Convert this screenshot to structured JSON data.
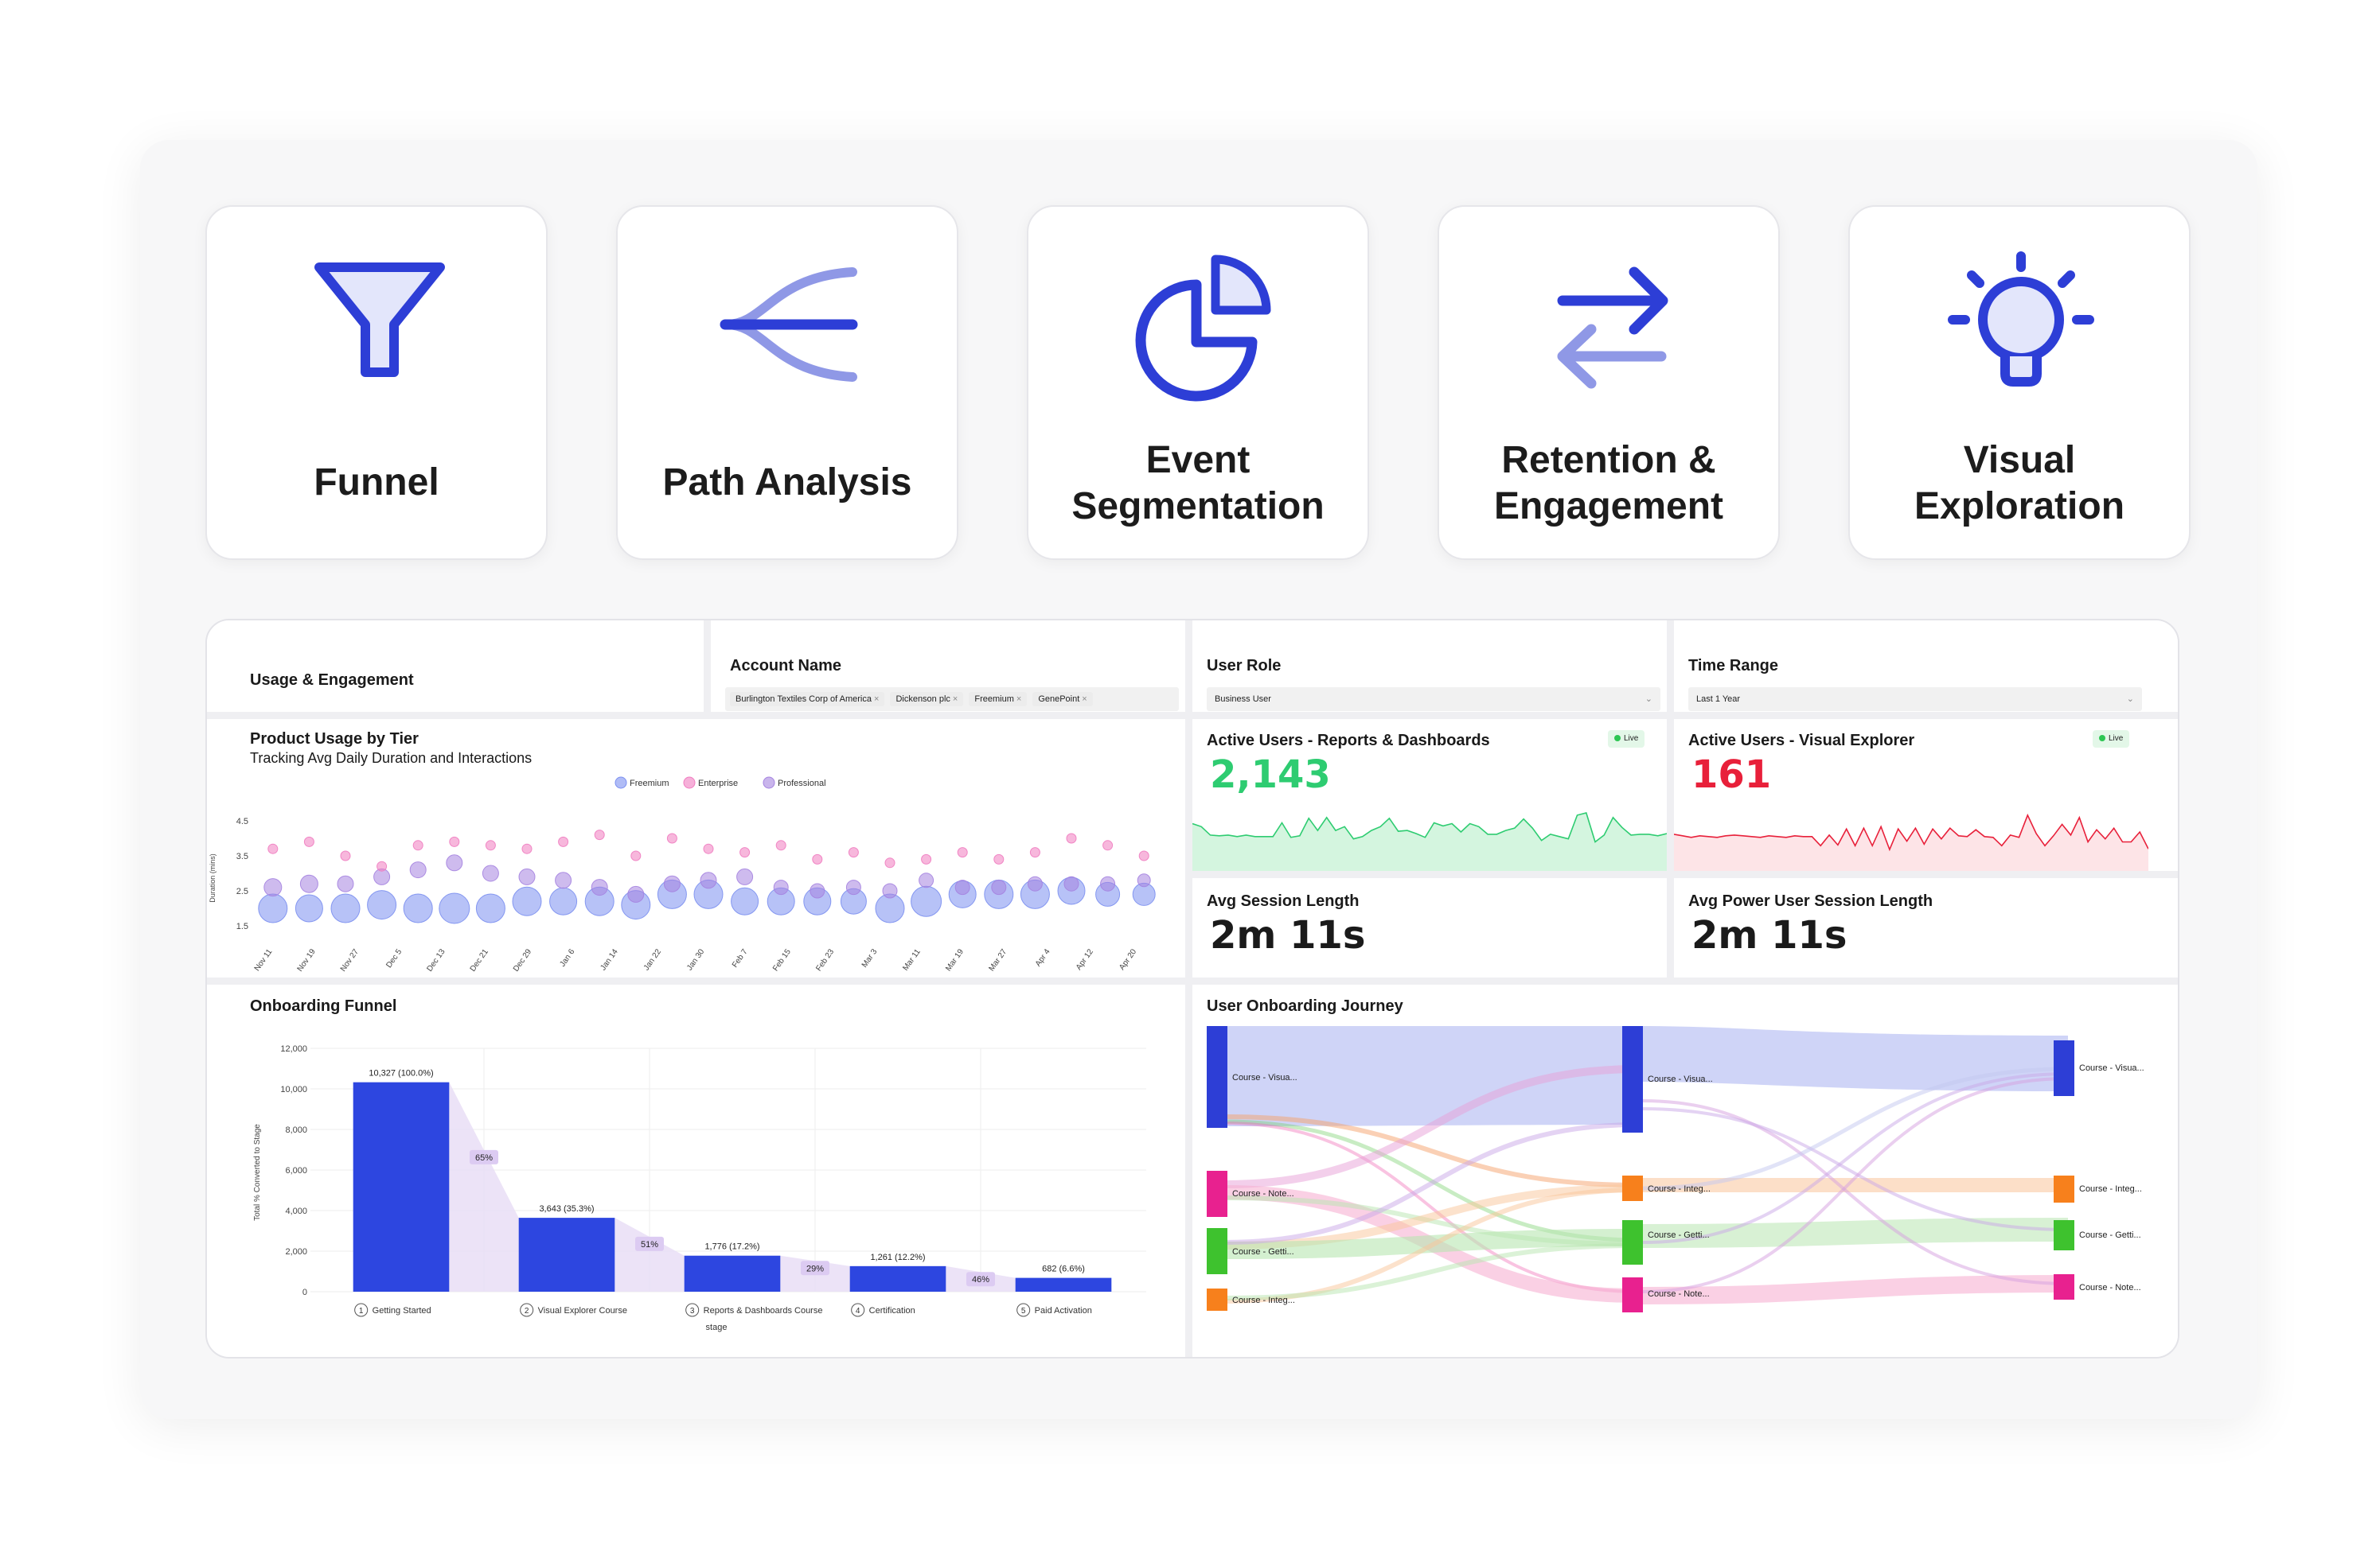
{
  "cards": [
    {
      "label": "Funnel",
      "icon": "funnel-icon"
    },
    {
      "label": "Path Analysis",
      "icon": "path-split-icon"
    },
    {
      "label_1": "Event",
      "label_2": "Segmentation",
      "icon": "pie-chart-icon"
    },
    {
      "label_1": "Retention &",
      "label_2": "Engagement",
      "icon": "swap-arrows-icon"
    },
    {
      "label_1": "Visual",
      "label_2": "Exploration",
      "icon": "lightbulb-icon"
    }
  ],
  "colors": {
    "brand": "#2d3ed6",
    "brand_light": "#8f98e6",
    "green": "#2ecc71",
    "red": "#e8203a"
  },
  "filters": {
    "section_title": "Usage & Engagement",
    "account_label": "Account Name",
    "account_chips": [
      "Burlington Textiles Corp of America",
      "Dickenson plc",
      "Freemium",
      "GenePoint"
    ],
    "role_label": "User Role",
    "role_value": "Business User",
    "time_label": "Time Range",
    "time_value": "Last 1 Year"
  },
  "kpis": {
    "active_reports": {
      "title": "Active Users - Reports & Dashboards",
      "value": "2,143",
      "badge": "Live"
    },
    "active_visual": {
      "title": "Active Users - Visual Explorer",
      "value": "161",
      "badge": "Live"
    },
    "avg_session": {
      "title": "Avg Session Length",
      "value": "2m 11s"
    },
    "avg_power": {
      "title": "Avg Power User Session Length",
      "value": "2m 11s"
    }
  },
  "bubble_chart": {
    "title": "Product Usage by Tier",
    "subtitle": "Tracking Avg Daily Duration and Interactions"
  },
  "funnel_chart": {
    "title": "Onboarding Funnel"
  },
  "sankey": {
    "title": "User Onboarding Journey",
    "labels": {
      "c1_visual": "Course - Visua...",
      "c1_note": "Course - Note...",
      "c1_getti": "Course - Getti...",
      "c1_integ": "Course - Integ...",
      "c2_visual": "Course - Visua...",
      "c2_integ": "Course - Integ...",
      "c2_getti": "Course - Getti...",
      "c2_note": "Course - Note...",
      "c3_visual": "Course - Visua...",
      "c3_integ": "Course - Integ...",
      "c3_getti": "Course - Getti...",
      "c3_note": "Course - Note..."
    }
  },
  "chart_data": [
    {
      "type": "scatter",
      "title": "Product Usage by Tier",
      "subtitle": "Tracking Avg Daily Duration and Interactions",
      "ylabel": "Duration (mins)",
      "ylim": [
        1.5,
        4.5
      ],
      "yticks": [
        "4.5",
        "3.5",
        "2.5",
        "1.5"
      ],
      "x_labels": [
        "Nov 11",
        "Nov 19",
        "Nov 27",
        "Dec 5",
        "Dec 13",
        "Dec 21",
        "Dec 29",
        "Jan 6",
        "Jan 14",
        "Jan 22",
        "Jan 30",
        "Feb 7",
        "Feb 15",
        "Feb 23",
        "Mar 3",
        "Mar 11",
        "Mar 19",
        "Mar 27",
        "Apr 4",
        "Apr 12",
        "Apr 20"
      ],
      "legend": [
        "Freemium",
        "Enterprise",
        "Professional"
      ],
      "series": [
        {
          "name": "Freemium",
          "color": "#7b8ff0",
          "y": [
            2.0,
            2.0,
            2.0,
            2.1,
            2.0,
            2.0,
            2.0,
            2.2,
            2.2,
            2.2,
            2.1,
            2.4,
            2.4,
            2.2,
            2.2,
            2.2,
            2.2,
            2.0,
            2.2,
            2.4,
            2.4,
            2.4,
            2.5,
            2.4,
            2.4
          ],
          "size": [
            18,
            17,
            18,
            18,
            18,
            19,
            18,
            18,
            17,
            18,
            18,
            18,
            18,
            17,
            17,
            17,
            16,
            18,
            19,
            17,
            18,
            18,
            17,
            15,
            14
          ]
        },
        {
          "name": "Professional",
          "color": "#a583e0",
          "y": [
            2.6,
            2.7,
            2.7,
            2.9,
            3.1,
            3.3,
            3.0,
            2.9,
            2.8,
            2.6,
            2.4,
            2.7,
            2.8,
            2.9,
            2.6,
            2.5,
            2.6,
            2.5,
            2.8,
            2.6,
            2.6,
            2.7,
            2.7,
            2.7,
            2.8
          ],
          "size": [
            11,
            11,
            10,
            10,
            10,
            10,
            10,
            10,
            10,
            10,
            10,
            10,
            10,
            10,
            9,
            9,
            9,
            9,
            9,
            9,
            9,
            9,
            9,
            9,
            8
          ]
        },
        {
          "name": "Enterprise",
          "color": "#f07cc0",
          "y": [
            3.7,
            3.9,
            3.5,
            3.2,
            3.8,
            3.9,
            3.8,
            3.7,
            3.9,
            4.1,
            3.5,
            4.0,
            3.7,
            3.6,
            3.8,
            3.4,
            3.6,
            3.3,
            3.4,
            3.6,
            3.4,
            3.6,
            4.0,
            3.8,
            3.5
          ],
          "size": [
            6,
            6,
            6,
            6,
            6,
            6,
            6,
            6,
            6,
            6,
            6,
            6,
            6,
            6,
            6,
            6,
            6,
            6,
            6,
            6,
            6,
            6,
            6,
            6,
            6
          ]
        }
      ]
    },
    {
      "type": "bar",
      "title": "Onboarding Funnel",
      "xlabel": "stage",
      "ylabel": "Total % Converted to Stage",
      "ylim": [
        0,
        12000
      ],
      "yticks": [
        "12,000",
        "10,000",
        "8,000",
        "6,000",
        "4,000",
        "2,000",
        "0"
      ],
      "categories": [
        "Getting Started",
        "Visual Explorer Course",
        "Reports & Dashboards Course",
        "Certification",
        "Paid Activation"
      ],
      "category_numbers": [
        "1",
        "2",
        "3",
        "4",
        "5"
      ],
      "values": [
        10327,
        3643,
        1776,
        1261,
        682
      ],
      "value_labels": [
        "10,327 (100.0%)",
        "3,643 (35.3%)",
        "1,776 (17.2%)",
        "1,261 (12.2%)",
        "682 (6.6%)"
      ],
      "conversion_labels": [
        "65%",
        "51%",
        "29%",
        "46%"
      ]
    },
    {
      "type": "line",
      "title": "Active Users - Reports & Dashboards",
      "values": [
        62,
        58,
        47,
        46,
        47,
        45,
        47,
        45,
        45,
        45,
        63,
        44,
        46,
        69,
        53,
        70,
        53,
        58,
        42,
        45,
        53,
        58,
        69,
        52,
        53,
        49,
        44,
        63,
        59,
        62,
        51,
        62,
        58,
        48,
        48,
        53,
        56,
        68,
        56,
        40,
        48,
        45,
        42,
        73,
        76,
        38,
        47,
        70,
        57,
        47,
        48,
        48,
        46,
        49
      ]
    },
    {
      "type": "line",
      "title": "Active Users - Visual Explorer",
      "values": [
        48,
        46,
        44,
        46,
        45,
        44,
        46,
        47,
        46,
        45,
        44,
        46,
        45,
        44,
        46,
        45,
        45,
        33,
        47,
        34,
        55,
        33,
        56,
        33,
        58,
        28,
        55,
        39,
        56,
        35,
        55,
        42,
        56,
        46,
        45,
        54,
        45,
        44,
        33,
        47,
        44,
        73,
        49,
        33,
        46,
        61,
        47,
        70,
        38,
        54,
        42,
        56,
        38,
        38,
        51,
        29
      ]
    }
  ]
}
